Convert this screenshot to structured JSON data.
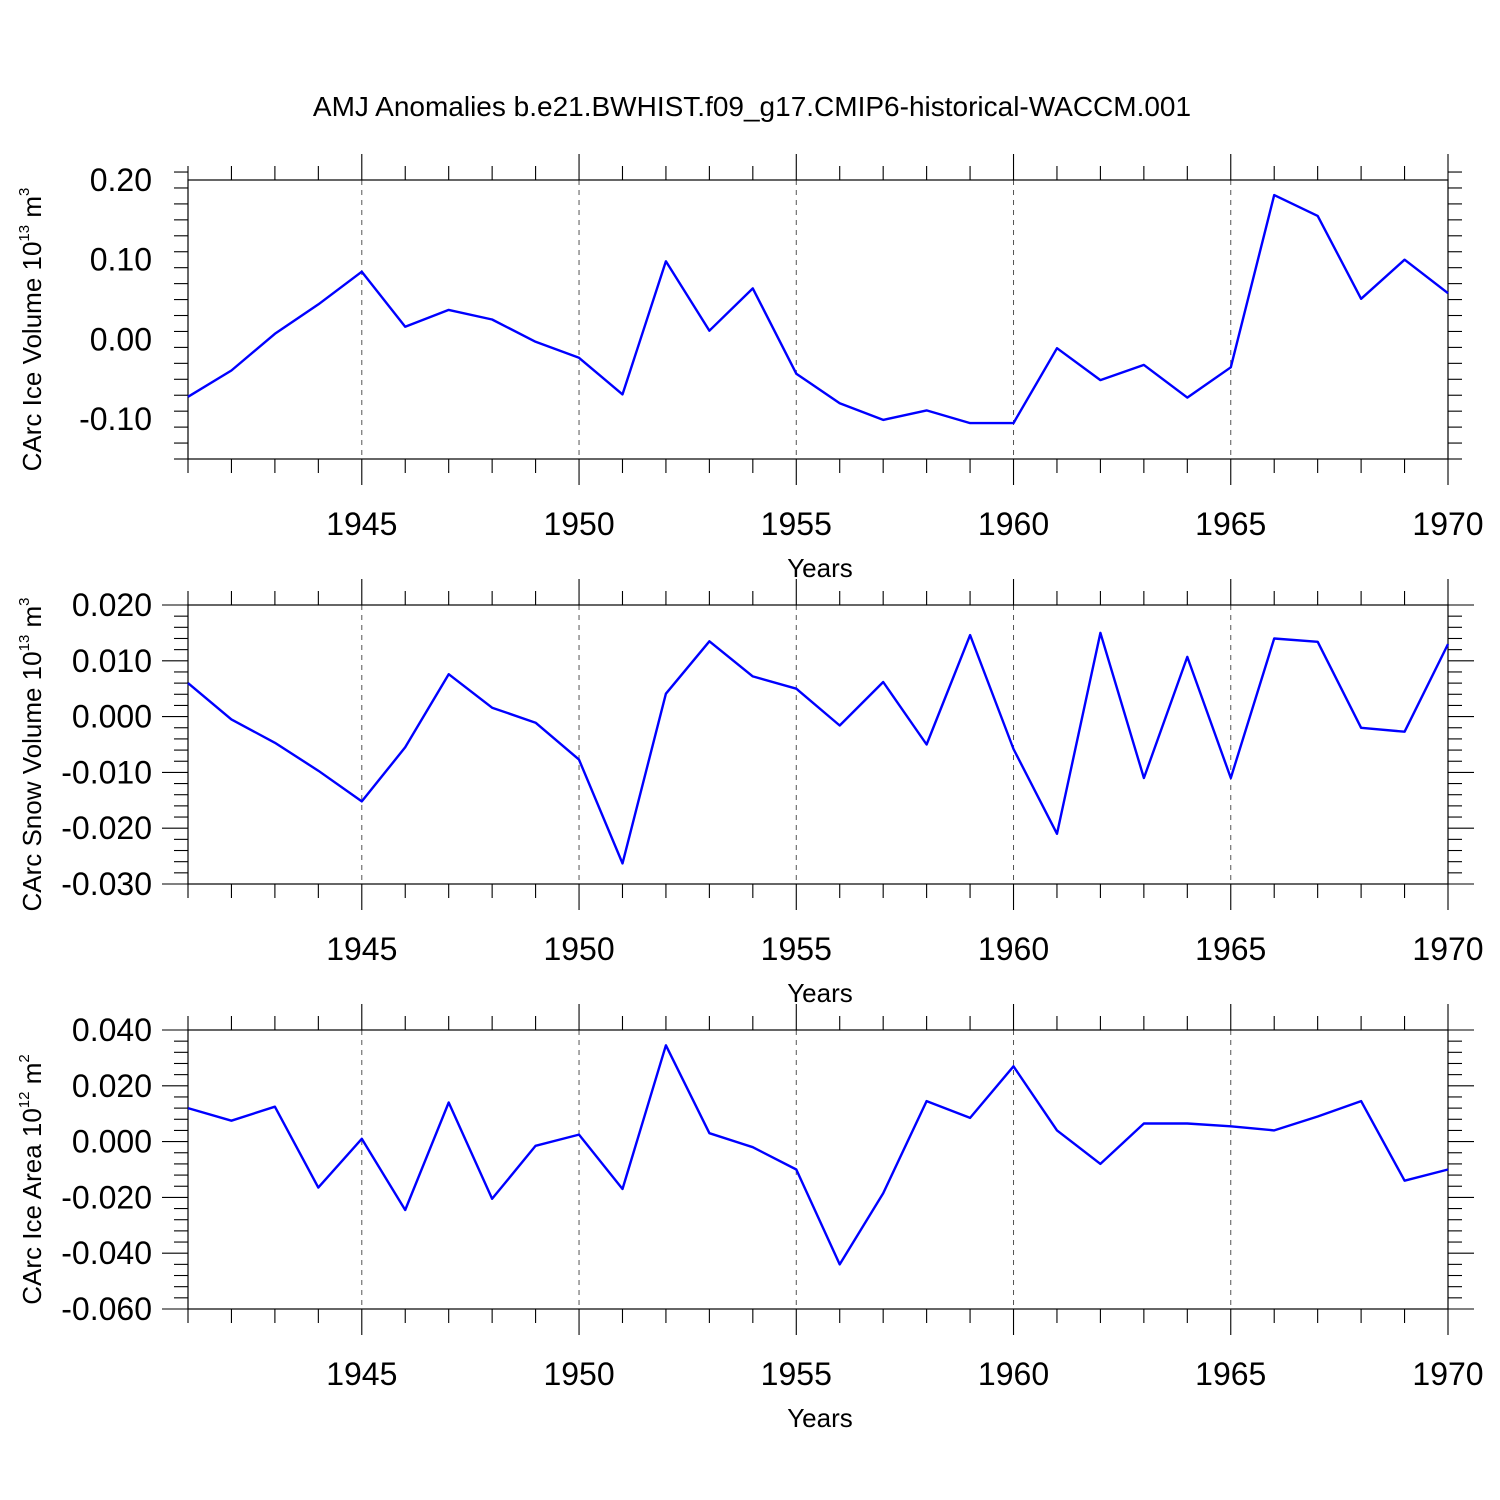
{
  "title": "AMJ Anomalies b.e21.BWHIST.f09_g17.CMIP6-historical-WACCM.001",
  "line_color": "#0000ff",
  "chart_data": [
    {
      "type": "line",
      "xlabel": "Years",
      "ylabel_main": "CArc Ice Volume 10",
      "ylabel_exp": "13",
      "ylabel_unit": " m",
      "ylabel_unit_exp": "3",
      "xlim": [
        1941,
        1970
      ],
      "ylim": [
        -0.15,
        0.2
      ],
      "grid_x": [
        1945,
        1950,
        1955,
        1960,
        1965
      ],
      "xticks": [
        1945,
        1950,
        1955,
        1960,
        1965,
        1970
      ],
      "xtick_labels": [
        "1945",
        "1950",
        "1955",
        "1960",
        "1965",
        "1970"
      ],
      "yticks": [
        0.2,
        0.1,
        0.0,
        -0.1
      ],
      "ytick_labels": [
        "0.20",
        "0.10",
        "0.00",
        "-0.10"
      ],
      "yminor_step": 0.02,
      "x": [
        1941,
        1942,
        1943,
        1944,
        1945,
        1946,
        1947,
        1948,
        1949,
        1950,
        1951,
        1952,
        1953,
        1954,
        1955,
        1956,
        1957,
        1958,
        1959,
        1960,
        1961,
        1962,
        1963,
        1964,
        1965,
        1966,
        1967,
        1968,
        1969,
        1970
      ],
      "values": [
        -0.072,
        -0.039,
        0.007,
        0.044,
        0.085,
        0.016,
        0.037,
        0.025,
        -0.003,
        -0.023,
        -0.069,
        0.098,
        0.011,
        0.064,
        -0.043,
        -0.08,
        -0.101,
        -0.089,
        -0.105,
        -0.105,
        -0.011,
        -0.051,
        -0.032,
        -0.073,
        -0.035,
        0.181,
        0.155,
        0.051,
        0.1,
        0.058
      ]
    },
    {
      "type": "line",
      "xlabel": "Years",
      "ylabel_main": "CArc Snow Volume 10",
      "ylabel_exp": "13",
      "ylabel_unit": " m",
      "ylabel_unit_exp": "3",
      "xlim": [
        1941,
        1970
      ],
      "ylim": [
        -0.03,
        0.02
      ],
      "grid_x": [
        1945,
        1950,
        1955,
        1960,
        1965
      ],
      "xticks": [
        1945,
        1950,
        1955,
        1960,
        1965,
        1970
      ],
      "xtick_labels": [
        "1945",
        "1950",
        "1955",
        "1960",
        "1965",
        "1970"
      ],
      "yticks": [
        0.02,
        0.01,
        0.0,
        -0.01,
        -0.02,
        -0.03
      ],
      "ytick_labels": [
        "0.020",
        "0.010",
        "0.000",
        "-0.010",
        "-0.020",
        "-0.030"
      ],
      "yminor_step": 0.002,
      "x": [
        1941,
        1942,
        1943,
        1944,
        1945,
        1946,
        1947,
        1948,
        1949,
        1950,
        1951,
        1952,
        1953,
        1954,
        1955,
        1956,
        1957,
        1958,
        1959,
        1960,
        1961,
        1962,
        1963,
        1964,
        1965,
        1966,
        1967,
        1968,
        1969,
        1970
      ],
      "values": [
        0.006,
        -0.0005,
        -0.0047,
        -0.0097,
        -0.0152,
        -0.0055,
        0.0076,
        0.0016,
        -0.0011,
        -0.0077,
        -0.0263,
        0.0041,
        0.0135,
        0.0072,
        0.005,
        -0.0016,
        0.0062,
        -0.005,
        0.0146,
        -0.0058,
        -0.021,
        0.015,
        -0.011,
        0.0107,
        -0.011,
        0.014,
        0.0134,
        -0.002,
        -0.0027,
        0.013
      ]
    },
    {
      "type": "line",
      "xlabel": "Years",
      "ylabel_main": "CArc Ice Area 10",
      "ylabel_exp": "12",
      "ylabel_unit": " m",
      "ylabel_unit_exp": "2",
      "xlim": [
        1941,
        1970
      ],
      "ylim": [
        -0.06,
        0.04
      ],
      "grid_x": [
        1945,
        1950,
        1955,
        1960,
        1965
      ],
      "xticks": [
        1945,
        1950,
        1955,
        1960,
        1965,
        1970
      ],
      "xtick_labels": [
        "1945",
        "1950",
        "1955",
        "1960",
        "1965",
        "1970"
      ],
      "yticks": [
        0.04,
        0.02,
        0.0,
        -0.02,
        -0.04,
        -0.06
      ],
      "ytick_labels": [
        "0.040",
        "0.020",
        "0.000",
        "-0.020",
        "-0.040",
        "-0.060"
      ],
      "yminor_step": 0.004,
      "x": [
        1941,
        1942,
        1943,
        1944,
        1945,
        1946,
        1947,
        1948,
        1949,
        1950,
        1951,
        1952,
        1953,
        1954,
        1955,
        1956,
        1957,
        1958,
        1959,
        1960,
        1961,
        1962,
        1963,
        1964,
        1965,
        1966,
        1967,
        1968,
        1969,
        1970
      ],
      "values": [
        0.012,
        0.0075,
        0.0125,
        -0.0165,
        0.001,
        -0.0245,
        0.014,
        -0.0205,
        -0.0015,
        0.0025,
        -0.017,
        0.0345,
        0.003,
        -0.002,
        -0.01,
        -0.044,
        -0.0185,
        0.0145,
        0.0085,
        0.027,
        0.004,
        -0.008,
        0.0065,
        0.0065,
        0.0055,
        0.004,
        0.009,
        0.0145,
        -0.014,
        -0.01
      ]
    }
  ]
}
